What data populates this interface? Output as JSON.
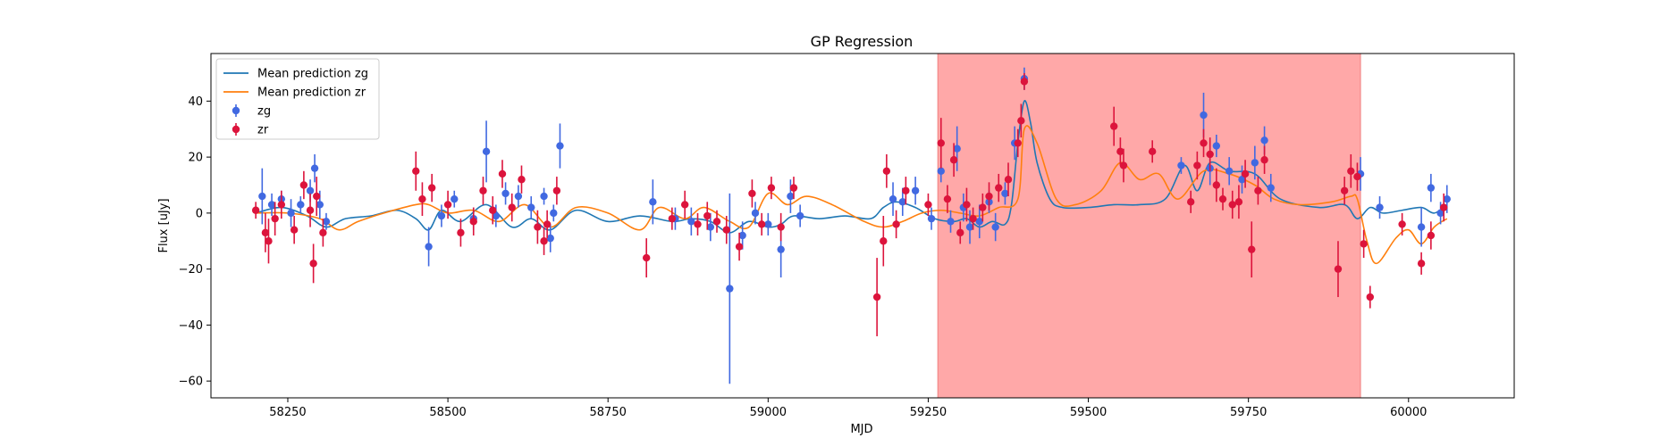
{
  "chart_data": {
    "type": "scatter",
    "title": "GP Regression",
    "xlabel": "MJD",
    "ylabel": "Flux [uJy]",
    "xlim": [
      58130,
      60165
    ],
    "ylim": [
      -66,
      57
    ],
    "xticks": [
      58250,
      58500,
      58750,
      59000,
      59250,
      59500,
      59750,
      60000
    ],
    "yticks": [
      -60,
      -40,
      -20,
      0,
      20,
      40
    ],
    "grid": false,
    "legend_position": "top-left",
    "shaded_region": {
      "x0": 59265,
      "x1": 59925,
      "color": "#ff9999"
    },
    "series": [
      {
        "name": "Mean prediction zg",
        "kind": "line",
        "color": "#1f77b4",
        "x": [
          58200,
          58240,
          58280,
          58310,
          58340,
          58380,
          58420,
          58450,
          58470,
          58490,
          58520,
          58560,
          58600,
          58630,
          58660,
          58700,
          58750,
          58800,
          58850,
          58880,
          58910,
          58940,
          58970,
          59000,
          59020,
          59040,
          59080,
          59120,
          59160,
          59180,
          59200,
          59230,
          59260,
          59290,
          59310,
          59330,
          59350,
          59370,
          59380,
          59390,
          59400,
          59410,
          59420,
          59440,
          59460,
          59500,
          59540,
          59580,
          59620,
          59650,
          59670,
          59690,
          59720,
          59760,
          59800,
          59860,
          59900,
          59920,
          59940,
          59960,
          59990,
          60020,
          60040,
          60060
        ],
        "y": [
          0,
          2,
          -1,
          -5,
          -2,
          -1,
          1,
          -2,
          -6,
          1,
          -3,
          3,
          -5,
          -2,
          -6,
          1,
          -3,
          -1,
          -3,
          -2,
          -3,
          -7,
          -3,
          -5,
          -4,
          -1,
          -2,
          -1,
          -2,
          2,
          4,
          2,
          -2,
          -3,
          -2,
          -5,
          -3,
          -4,
          3,
          25,
          40,
          32,
          18,
          5,
          2,
          2,
          3,
          3,
          5,
          17,
          8,
          18,
          15,
          14,
          5,
          2,
          3,
          -2,
          2,
          0,
          1,
          2,
          0,
          3
        ]
      },
      {
        "name": "Mean prediction zr",
        "kind": "line",
        "color": "#ff7f0e",
        "x": [
          58200,
          58250,
          58300,
          58330,
          58360,
          58400,
          58450,
          58470,
          58500,
          58540,
          58580,
          58620,
          58660,
          58700,
          58750,
          58800,
          58830,
          58870,
          58900,
          58940,
          58970,
          59000,
          59030,
          59060,
          59100,
          59150,
          59180,
          59210,
          59240,
          59270,
          59300,
          59330,
          59360,
          59390,
          59400,
          59420,
          59450,
          59480,
          59520,
          59550,
          59580,
          59610,
          59640,
          59680,
          59720,
          59760,
          59790,
          59830,
          59880,
          59910,
          59920,
          59935,
          59950,
          59980,
          60000,
          60020,
          60040,
          60060
        ],
        "y": [
          0,
          0,
          -2,
          -6,
          -3,
          0,
          3,
          3,
          0,
          1,
          -3,
          3,
          -5,
          2,
          0,
          -6,
          2,
          -2,
          2,
          -3,
          -5,
          7,
          3,
          6,
          3,
          -3,
          -5,
          -3,
          0,
          1,
          0,
          -1,
          2,
          5,
          30,
          25,
          5,
          3,
          8,
          18,
          12,
          14,
          5,
          15,
          14,
          10,
          5,
          3,
          4,
          6,
          5,
          -10,
          -18,
          -9,
          -6,
          -11,
          -5,
          -2
        ]
      },
      {
        "name": "zg",
        "kind": "errorbar",
        "color": "#4169e1",
        "x": [
          58210,
          58225,
          58240,
          58255,
          58270,
          58285,
          58292,
          58300,
          58310,
          58470,
          58490,
          58510,
          58540,
          58560,
          58575,
          58590,
          58610,
          58630,
          58650,
          58660,
          58665,
          58675,
          58820,
          58855,
          58880,
          58910,
          58940,
          58960,
          58980,
          59000,
          59020,
          59035,
          59050,
          59195,
          59210,
          59230,
          59255,
          59270,
          59285,
          59295,
          59305,
          59315,
          59330,
          59345,
          59355,
          59370,
          59385,
          59400,
          59645,
          59680,
          59690,
          59700,
          59720,
          59740,
          59760,
          59775,
          59785,
          59925,
          59955,
          60020,
          60035,
          60050,
          60060
        ],
        "y": [
          6,
          3,
          5,
          0,
          3,
          8,
          16,
          3,
          -3,
          -12,
          -1,
          5,
          -2,
          22,
          -1,
          7,
          6,
          2,
          6,
          -9,
          0,
          24,
          4,
          -2,
          -3,
          -5,
          -27,
          -8,
          0,
          -4,
          -13,
          6,
          -1,
          5,
          4,
          8,
          -2,
          15,
          -3,
          23,
          2,
          -5,
          -3,
          4,
          -5,
          7,
          25,
          48,
          17,
          35,
          16,
          24,
          15,
          12,
          18,
          26,
          9,
          14,
          2,
          -5,
          9,
          0,
          5
        ],
        "err": [
          10,
          4,
          3,
          5,
          3,
          4,
          5,
          5,
          3,
          7,
          4,
          3,
          4,
          11,
          4,
          4,
          4,
          4,
          3,
          5,
          3,
          8,
          8,
          4,
          5,
          5,
          34,
          5,
          4,
          4,
          10,
          6,
          4,
          6,
          5,
          5,
          4,
          4,
          4,
          8,
          5,
          6,
          6,
          4,
          5,
          4,
          6,
          4,
          3,
          8,
          6,
          4,
          5,
          5,
          6,
          5,
          5,
          6,
          4,
          7,
          5,
          4,
          5
        ]
      },
      {
        "name": "zr",
        "kind": "errorbar",
        "color": "#dc143c",
        "x": [
          58200,
          58215,
          58220,
          58230,
          58240,
          58260,
          58275,
          58285,
          58290,
          58295,
          58305,
          58450,
          58460,
          58475,
          58500,
          58520,
          58540,
          58555,
          58570,
          58585,
          58600,
          58615,
          58640,
          58650,
          58655,
          58670,
          58810,
          58850,
          58870,
          58890,
          58905,
          58920,
          58935,
          58955,
          58975,
          58990,
          59005,
          59020,
          59040,
          59170,
          59180,
          59185,
          59200,
          59215,
          59250,
          59270,
          59280,
          59290,
          59300,
          59310,
          59320,
          59335,
          59345,
          59360,
          59375,
          59390,
          59395,
          59400,
          59540,
          59550,
          59555,
          59600,
          59660,
          59670,
          59680,
          59690,
          59700,
          59710,
          59725,
          59735,
          59745,
          59755,
          59765,
          59775,
          59890,
          59900,
          59910,
          59920,
          59930,
          59940,
          59990,
          60020,
          60035,
          60055
        ],
        "y": [
          1,
          -7,
          -10,
          -2,
          3,
          -6,
          10,
          1,
          -18,
          6,
          -7,
          15,
          5,
          9,
          3,
          -7,
          -3,
          8,
          1,
          14,
          2,
          12,
          -5,
          -10,
          -4,
          8,
          -16,
          -2,
          3,
          -4,
          -1,
          -3,
          -6,
          -12,
          7,
          -4,
          9,
          -5,
          9,
          -30,
          -10,
          15,
          -4,
          8,
          3,
          25,
          5,
          19,
          -7,
          3,
          -2,
          2,
          6,
          9,
          12,
          25,
          33,
          47,
          31,
          22,
          17,
          22,
          4,
          17,
          25,
          21,
          10,
          5,
          3,
          4,
          14,
          -13,
          8,
          19,
          -20,
          8,
          15,
          13,
          -11,
          -30,
          -4,
          -18,
          -8,
          2
        ],
        "err": [
          3,
          7,
          8,
          6,
          5,
          5,
          5,
          6,
          7,
          7,
          5,
          7,
          6,
          5,
          5,
          5,
          5,
          5,
          5,
          5,
          5,
          5,
          6,
          5,
          5,
          5,
          7,
          4,
          5,
          4,
          5,
          4,
          5,
          5,
          5,
          4,
          4,
          5,
          4,
          14,
          9,
          6,
          5,
          5,
          4,
          9,
          5,
          6,
          4,
          6,
          4,
          5,
          5,
          5,
          6,
          5,
          6,
          3,
          7,
          5,
          6,
          4,
          4,
          5,
          5,
          6,
          6,
          4,
          5,
          6,
          5,
          10,
          5,
          5,
          10,
          5,
          6,
          5,
          5,
          4,
          4,
          4,
          5,
          5
        ]
      }
    ]
  }
}
